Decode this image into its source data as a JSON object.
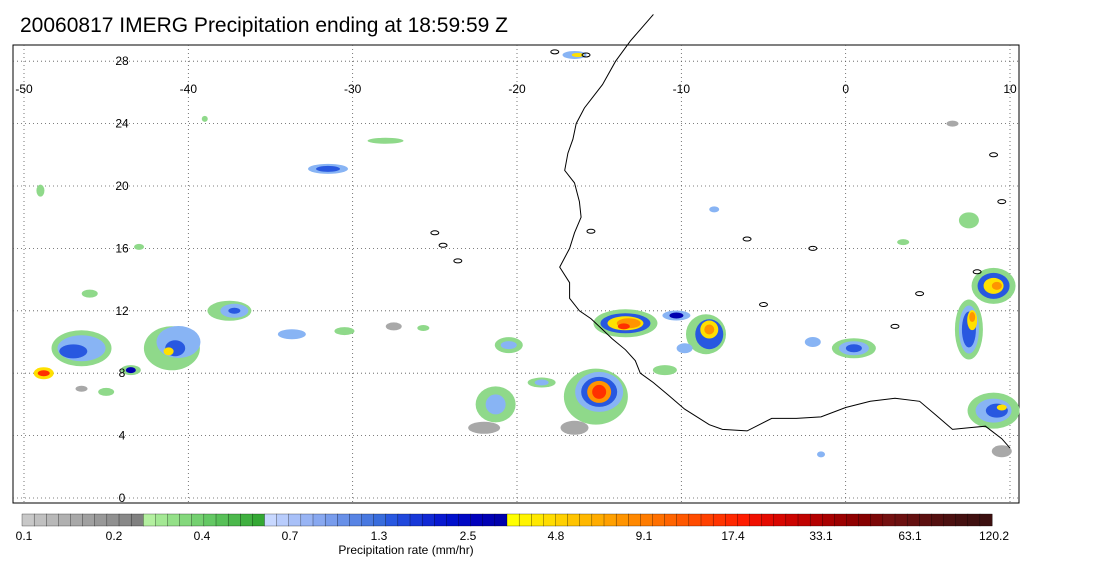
{
  "title": "20060817 IMERG Precipitation ending at 18:59:59 Z",
  "map": {
    "lon_range": [
      -50,
      10
    ],
    "lat_range": [
      0,
      30
    ],
    "lon_labels": [
      "-50",
      "-40",
      "-30",
      "-20",
      "-10",
      "0",
      "10"
    ],
    "lat_labels": [
      "0",
      "4",
      "8",
      "12",
      "16",
      "20",
      "24",
      "28"
    ],
    "gridlines": "dotted"
  },
  "colorbar": {
    "xlabel": "Precipitation rate (mm/hr)",
    "tick_labels": [
      "0.1",
      "0.2",
      "0.4",
      "0.7",
      "1.3",
      "2.5",
      "4.8",
      "9.1",
      "17.4",
      "33.1",
      "63.1",
      "120.2"
    ],
    "colors": [
      "#c8c8c8",
      "#c0c0c0",
      "#b8b8b8",
      "#b0b0b0",
      "#a8a8a8",
      "#a0a0a0",
      "#989898",
      "#909090",
      "#888888",
      "#808080",
      "#b4f0a0",
      "#a4e894",
      "#94e088",
      "#84d87c",
      "#74d070",
      "#64c864",
      "#58c058",
      "#4cb84c",
      "#40b040",
      "#34a834",
      "#c8d8ff",
      "#b8ccfc",
      "#a8c0f8",
      "#98b4f4",
      "#88a8f0",
      "#789cec",
      "#6890e8",
      "#5884e4",
      "#4878e0",
      "#386cdc",
      "#2858e0",
      "#2048dc",
      "#1838d8",
      "#1028d4",
      "#0818d0",
      "#0010cc",
      "#0008c4",
      "#0000bc",
      "#0000b4",
      "#0000ac",
      "#ffff00",
      "#fff400",
      "#ffe800",
      "#ffdc00",
      "#ffd000",
      "#ffc400",
      "#ffb800",
      "#ffac00",
      "#ffa000",
      "#ff9400",
      "#ff8800",
      "#ff7c00",
      "#ff7000",
      "#ff6400",
      "#ff5800",
      "#ff4c00",
      "#ff4000",
      "#ff3400",
      "#ff2800",
      "#ff1c00",
      "#f01000",
      "#e40a00",
      "#d80600",
      "#cc0400",
      "#c00200",
      "#b40000",
      "#a80000",
      "#9c0000",
      "#900000",
      "#860000",
      "#7c0808",
      "#741010",
      "#6c1010",
      "#641010",
      "#5c1010",
      "#541010",
      "#4c1010",
      "#441010",
      "#401010",
      "#3c1010"
    ]
  },
  "palette": {
    "light_gray": "#a8a8a8",
    "light_green": "#8fd98a",
    "light_blue": "#88b4f4",
    "blue": "#2858e0",
    "navy": "#0000b0",
    "yellow": "#ffe000",
    "orange": "#ff9400",
    "red": "#ff3000",
    "dark_red": "#b40000",
    "coastline": "#000000"
  }
}
